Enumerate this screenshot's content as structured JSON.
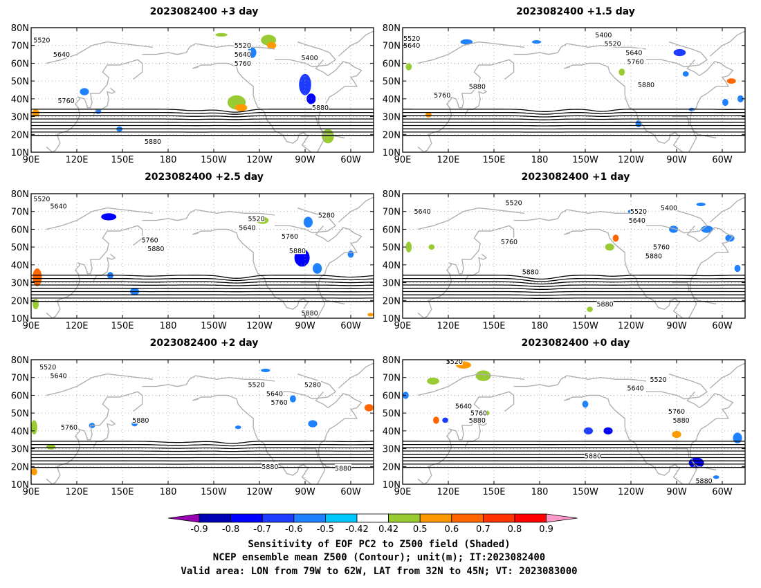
{
  "panels": [
    {
      "title": "2023082400 +3 day",
      "contour_labels": [
        {
          "v": "5520",
          "lon": 97,
          "lat": 73
        },
        {
          "v": "5640",
          "lon": 110,
          "lat": 65
        },
        {
          "v": "5760",
          "lon": 113,
          "lat": 39
        },
        {
          "v": "5880",
          "lon": 170,
          "lat": 16
        },
        {
          "v": "5520",
          "lon": 229,
          "lat": 70
        },
        {
          "v": "5640",
          "lon": 229,
          "lat": 65
        },
        {
          "v": "5760",
          "lon": 229,
          "lat": 60
        },
        {
          "v": "5400",
          "lon": 273,
          "lat": 63
        },
        {
          "v": "5880",
          "lon": 280,
          "lat": 35
        }
      ]
    },
    {
      "title": "2023082400 +1.5 day",
      "contour_labels": [
        {
          "v": "5520",
          "lon": 96,
          "lat": 74
        },
        {
          "v": "5640",
          "lon": 96,
          "lat": 70
        },
        {
          "v": "5760",
          "lon": 116,
          "lat": 42
        },
        {
          "v": "5880",
          "lon": 139,
          "lat": 47
        },
        {
          "v": "5400",
          "lon": 222,
          "lat": 76
        },
        {
          "v": "5520",
          "lon": 228,
          "lat": 71
        },
        {
          "v": "5640",
          "lon": 242,
          "lat": 66
        },
        {
          "v": "5760",
          "lon": 243,
          "lat": 61
        },
        {
          "v": "5880",
          "lon": 250,
          "lat": 48
        }
      ]
    },
    {
      "title": "2023082400 +2.5 day",
      "contour_labels": [
        {
          "v": "5520",
          "lon": 97,
          "lat": 77
        },
        {
          "v": "5640",
          "lon": 108,
          "lat": 73
        },
        {
          "v": "5760",
          "lon": 168,
          "lat": 54
        },
        {
          "v": "5880",
          "lon": 172,
          "lat": 49
        },
        {
          "v": "5520",
          "lon": 238,
          "lat": 66
        },
        {
          "v": "5640",
          "lon": 232,
          "lat": 61
        },
        {
          "v": "5280",
          "lon": 284,
          "lat": 68
        },
        {
          "v": "5760",
          "lon": 260,
          "lat": 56
        },
        {
          "v": "5880",
          "lon": 265,
          "lat": 48
        },
        {
          "v": "5880",
          "lon": 273,
          "lat": 13
        }
      ]
    },
    {
      "title": "2023082400 +1 day",
      "contour_labels": [
        {
          "v": "5640",
          "lon": 103,
          "lat": 70
        },
        {
          "v": "5520",
          "lon": 163,
          "lat": 75
        },
        {
          "v": "5760",
          "lon": 160,
          "lat": 53
        },
        {
          "v": "5880",
          "lon": 174,
          "lat": 36
        },
        {
          "v": "5880",
          "lon": 223,
          "lat": 18
        },
        {
          "v": "5520",
          "lon": 245,
          "lat": 70
        },
        {
          "v": "5400",
          "lon": 265,
          "lat": 72
        },
        {
          "v": "5640",
          "lon": 244,
          "lat": 65
        },
        {
          "v": "5760",
          "lon": 260,
          "lat": 50
        },
        {
          "v": "5880",
          "lon": 255,
          "lat": 45
        }
      ]
    },
    {
      "title": "2023082400 +2 day",
      "contour_labels": [
        {
          "v": "5520",
          "lon": 101,
          "lat": 76
        },
        {
          "v": "5640",
          "lon": 108,
          "lat": 71
        },
        {
          "v": "5760",
          "lon": 115,
          "lat": 42
        },
        {
          "v": "5880",
          "lon": 162,
          "lat": 46
        },
        {
          "v": "5520",
          "lon": 238,
          "lat": 66
        },
        {
          "v": "5640",
          "lon": 250,
          "lat": 61
        },
        {
          "v": "5760",
          "lon": 253,
          "lat": 56
        },
        {
          "v": "5280",
          "lon": 275,
          "lat": 66
        },
        {
          "v": "5880",
          "lon": 247,
          "lat": 20
        },
        {
          "v": "5880",
          "lon": 295,
          "lat": 19
        }
      ]
    },
    {
      "title": "2023082400 +0 day",
      "contour_labels": [
        {
          "v": "5520",
          "lon": 124,
          "lat": 79
        },
        {
          "v": "5640",
          "lon": 130,
          "lat": 54
        },
        {
          "v": "5760",
          "lon": 140,
          "lat": 50
        },
        {
          "v": "5880",
          "lon": 139,
          "lat": 46
        },
        {
          "v": "5520",
          "lon": 258,
          "lat": 69
        },
        {
          "v": "5640",
          "lon": 243,
          "lat": 64
        },
        {
          "v": "5760",
          "lon": 270,
          "lat": 51
        },
        {
          "v": "5880",
          "lon": 273,
          "lat": 46
        },
        {
          "v": "5880",
          "lon": 215,
          "lat": 26
        },
        {
          "v": "5880",
          "lon": 288,
          "lat": 12
        }
      ]
    }
  ],
  "axes": {
    "x_ticks": [
      "90E",
      "120E",
      "150E",
      "180",
      "150W",
      "120W",
      "90W",
      "60W"
    ],
    "x_tick_lons": [
      90,
      120,
      150,
      180,
      210,
      240,
      270,
      300
    ],
    "lon_range": [
      90,
      315
    ],
    "y_ticks": [
      "10N",
      "20N",
      "30N",
      "40N",
      "50N",
      "60N",
      "70N",
      "80N"
    ],
    "y_tick_lats": [
      10,
      20,
      30,
      40,
      50,
      60,
      70,
      80
    ],
    "lat_range": [
      10,
      80
    ]
  },
  "colorbar": {
    "tick_labels": [
      "-0.9",
      "-0.8",
      "-0.7",
      "-0.6",
      "-0.5",
      "-0.42",
      "0.42",
      "0.5",
      "0.6",
      "0.7",
      "0.8",
      "0.9"
    ],
    "colors": [
      "#9900b3",
      "#0000b3",
      "#0000ff",
      "#1e3cff",
      "#1e82ff",
      "#00c8ff",
      "#ffffff",
      "#99cc33",
      "#ff9900",
      "#ff6600",
      "#ff3300",
      "#ff0000",
      "#ff99cc"
    ]
  },
  "caption": [
    "Sensitivity of EOF PC2 to Z500 field (Shaded)",
    "NCEP ensemble mean Z500 (Contour); unit(m); IT:2023082400",
    "Valid area: LON from 79W to 62W, LAT from 32N to 45N; VT: 2023083000"
  ],
  "colors": {
    "contour": "#000000",
    "coast": "#b0b0b0",
    "grid": "#999999"
  }
}
